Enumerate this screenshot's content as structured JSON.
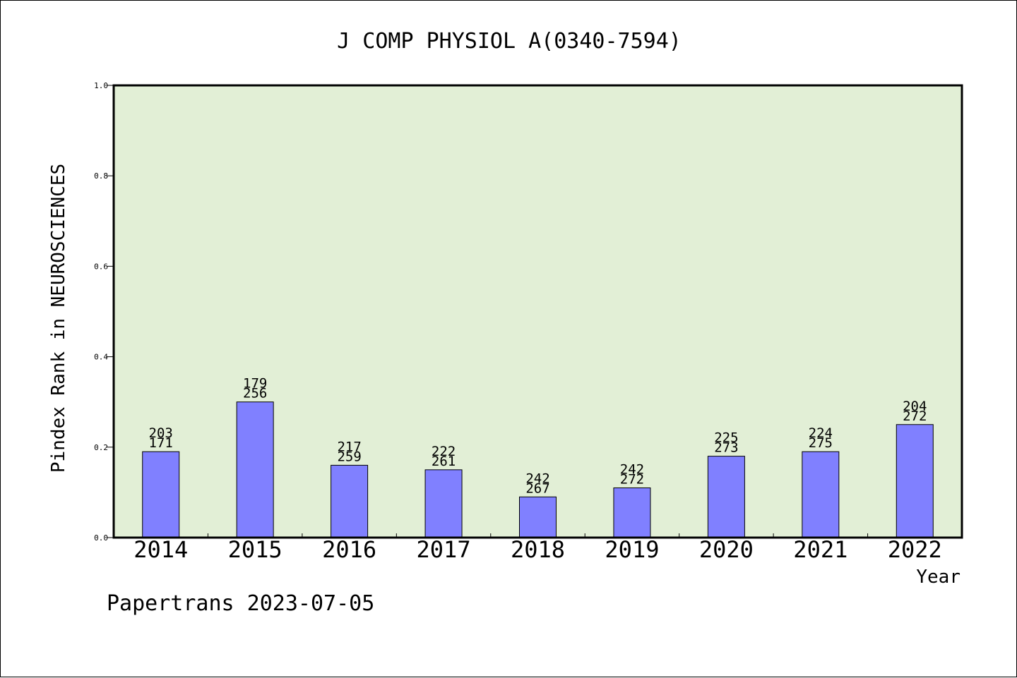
{
  "chart_data": {
    "type": "bar",
    "title": "J COMP PHYSIOL A(0340-7594)",
    "xlabel": "Year",
    "ylabel": "Pindex Rank in NEUROSCIENCES",
    "ylim": [
      0,
      1.0
    ],
    "yticks": [
      "0.0",
      "0.2",
      "0.4",
      "0.6",
      "0.8",
      "1.0"
    ],
    "grid": false,
    "categories": [
      "2014",
      "2015",
      "2016",
      "2017",
      "2018",
      "2019",
      "2020",
      "2021",
      "2022"
    ],
    "values": [
      0.19,
      0.3,
      0.16,
      0.15,
      0.09,
      0.11,
      0.18,
      0.19,
      0.25
    ],
    "annotations": [
      {
        "rank": "171",
        "total": "203"
      },
      {
        "rank": "256",
        "total": "179"
      },
      {
        "rank": "259",
        "total": "217"
      },
      {
        "rank": "261",
        "total": "222"
      },
      {
        "rank": "267",
        "total": "242"
      },
      {
        "rank": "272",
        "total": "242"
      },
      {
        "rank": "273",
        "total": "225"
      },
      {
        "rank": "275",
        "total": "224"
      },
      {
        "rank": "272",
        "total": "204"
      }
    ],
    "colors": {
      "plot_background": "#e2efd6",
      "bar_fill": "#8080ff",
      "bar_stroke": "#000000",
      "axis": "#000000"
    }
  },
  "footer": {
    "watermark": "Papertrans 2023-07-05"
  }
}
